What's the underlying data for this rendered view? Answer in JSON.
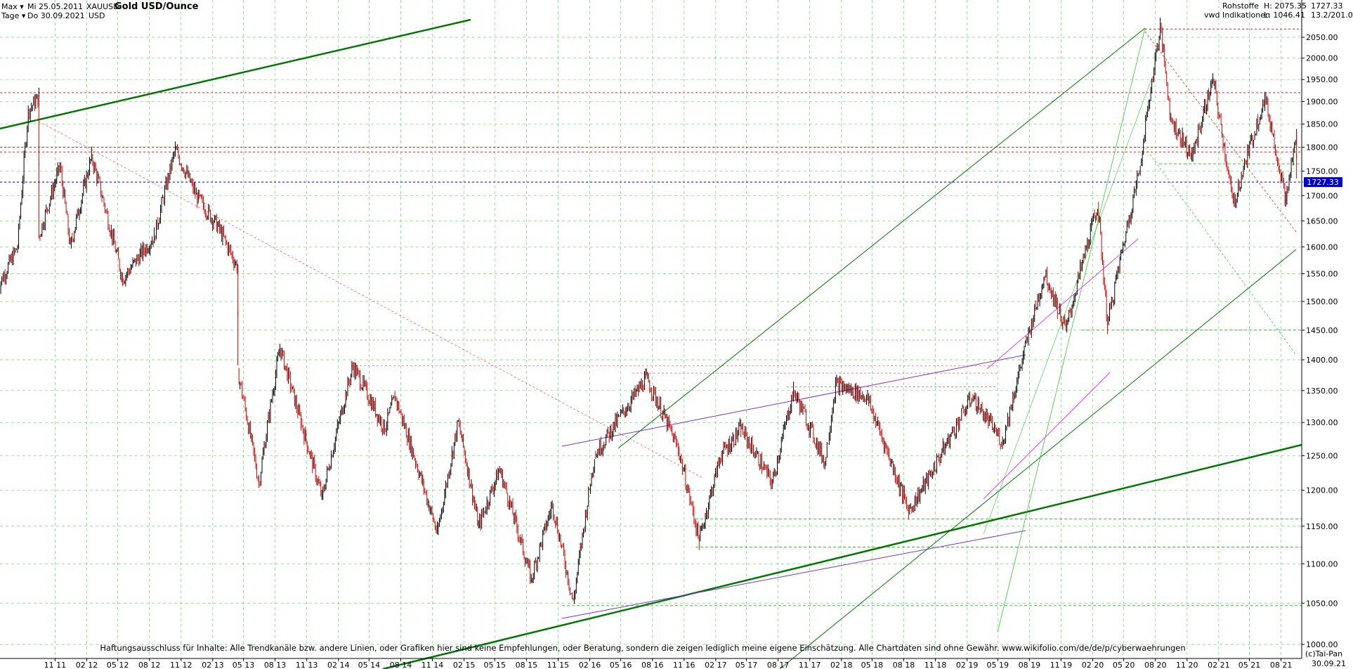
{
  "header": {
    "range_mode": "Max",
    "start_date": "Mi 25.05.2011",
    "period_mode": "Tage",
    "end_date": "Do 30.09.2021",
    "symbol": "XAUUSD",
    "currency": "USD",
    "title": "Gold USD/Ounce",
    "category": "Rohstoffe",
    "source": "vwd Indikationen",
    "high_label": "H: 2075.35",
    "low_label": "L: 1046.41",
    "last_price": "1727.33",
    "right_top_2": "13.2/201.0"
  },
  "footer": {
    "disclaimer": "Haftungsausschluss für Inhalte: Alle Trendkanäle bzw. andere Linien, oder Grafiken hier sind keine Empfehlungen, oder Beratung, sondern die zeigen lediglich meine eigene Einschätzung. Alle Chartdaten sind ohne Gewähr.  www.wikifolio.com/de/de/p/cyberwaehrungen",
    "copyright": "(c)Tai-Pan",
    "last_date": "30.09.21"
  },
  "colors": {
    "price_up": "#000000",
    "price_down": "#dd0000",
    "support_green": "#007700",
    "light_green": "#33cc33",
    "resistance_red": "#ee2222",
    "purple": "#7733dd",
    "magenta": "#dd44dd",
    "current_line": "#0000cc",
    "label_bg": "#0000cc"
  },
  "chart_data": {
    "type": "line",
    "title": "Gold USD/Ounce",
    "ylim": [
      1000,
      2100
    ],
    "y_scale": "log",
    "y_ticks": [
      1000,
      1050,
      1100,
      1150,
      1200,
      1250,
      1300,
      1350,
      1400,
      1450,
      1500,
      1550,
      1600,
      1650,
      1700,
      1750,
      1800,
      1850,
      1900,
      1950,
      2000,
      2050
    ],
    "x_ticks": [
      "11 11",
      "02 12",
      "05 12",
      "08 12",
      "11 12",
      "02 13",
      "05 13",
      "08 13",
      "11 13",
      "02 14",
      "05 14",
      "08 14",
      "11 14",
      "02 15",
      "05 15",
      "08 15",
      "11 15",
      "02 16",
      "05 16",
      "08 16",
      "11 16",
      "02 17",
      "05 17",
      "08 17",
      "11 17",
      "02 18",
      "05 18",
      "08 18",
      "11 18",
      "02 19",
      "05 19",
      "08 19",
      "11 19",
      "02 20",
      "05 20",
      "08 20",
      "11 20",
      "02 21",
      "05 21",
      "08 21"
    ],
    "current_price": 1727.33,
    "grid": true,
    "series": [
      {
        "points": [
          [
            "2011-05",
            1520
          ],
          [
            "2011-07",
            1600
          ],
          [
            "2011-08",
            1880
          ],
          [
            "2011-09",
            1910
          ],
          [
            "2011-09",
            1620
          ],
          [
            "2011-11",
            1760
          ],
          [
            "2011-12",
            1600
          ],
          [
            "2012-02",
            1780
          ],
          [
            "2012-05",
            1540
          ],
          [
            "2012-08",
            1620
          ],
          [
            "2012-10",
            1795
          ],
          [
            "2012-12",
            1700
          ],
          [
            "2013-02",
            1640
          ],
          [
            "2013-04",
            1560
          ],
          [
            "2013-04",
            1380
          ],
          [
            "2013-06",
            1210
          ],
          [
            "2013-08",
            1420
          ],
          [
            "2013-10",
            1300
          ],
          [
            "2013-12",
            1190
          ],
          [
            "2014-03",
            1390
          ],
          [
            "2014-06",
            1290
          ],
          [
            "2014-07",
            1340
          ],
          [
            "2014-11",
            1140
          ],
          [
            "2015-01",
            1300
          ],
          [
            "2015-03",
            1150
          ],
          [
            "2015-05",
            1230
          ],
          [
            "2015-08",
            1080
          ],
          [
            "2015-10",
            1180
          ],
          [
            "2015-12",
            1050
          ],
          [
            "2016-02",
            1250
          ],
          [
            "2016-07",
            1370
          ],
          [
            "2016-10",
            1260
          ],
          [
            "2016-12",
            1130
          ],
          [
            "2017-02",
            1250
          ],
          [
            "2017-04",
            1290
          ],
          [
            "2017-07",
            1210
          ],
          [
            "2017-09",
            1350
          ],
          [
            "2017-12",
            1240
          ],
          [
            "2018-01",
            1360
          ],
          [
            "2018-04",
            1340
          ],
          [
            "2018-08",
            1170
          ],
          [
            "2018-10",
            1220
          ],
          [
            "2019-02",
            1340
          ],
          [
            "2019-05",
            1270
          ],
          [
            "2019-09",
            1550
          ],
          [
            "2019-11",
            1450
          ],
          [
            "2020-02",
            1680
          ],
          [
            "2020-03",
            1460
          ],
          [
            "2020-06",
            1750
          ],
          [
            "2020-08",
            2075
          ],
          [
            "2020-09",
            1860
          ],
          [
            "2020-11",
            1780
          ],
          [
            "2021-01",
            1950
          ],
          [
            "2021-03",
            1680
          ],
          [
            "2021-06",
            1910
          ],
          [
            "2021-08",
            1690
          ],
          [
            "2021-09",
            1830
          ],
          [
            "2021-09",
            1727
          ]
        ]
      }
    ]
  }
}
